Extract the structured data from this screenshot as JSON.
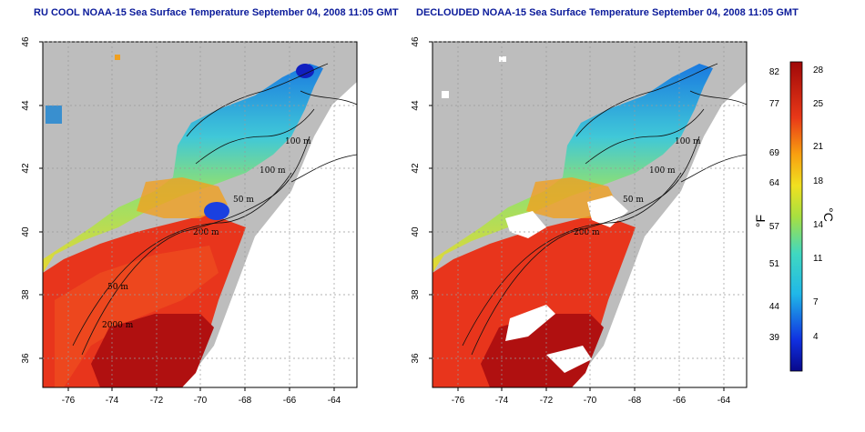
{
  "panels": [
    {
      "title": "RU COOL NOAA-15 Sea Surface Temperature September 04, 2008 11:05 GMT"
    },
    {
      "title": "DECLOUDED NOAA-15 Sea Surface Temperature September 04, 2008 11:05 GMT"
    }
  ],
  "axes": {
    "x_ticks": [
      "-76",
      "-74",
      "-72",
      "-70",
      "-68",
      "-66",
      "-64"
    ],
    "y_ticks": [
      "46",
      "44",
      "42",
      "40",
      "38",
      "36"
    ]
  },
  "contour_labels": [
    "100 m",
    "100 m",
    "50 m",
    "200 m",
    "50 m",
    "2000 m"
  ],
  "colorbar": {
    "f_label": "°F",
    "c_label": "°C",
    "f_ticks": [
      "82",
      "77",
      "69",
      "64",
      "57",
      "51",
      "44",
      "39"
    ],
    "c_ticks": [
      "28",
      "25",
      "21",
      "18",
      "14",
      "11",
      "7",
      "4"
    ]
  },
  "colors": {
    "land": "#bdbdbd",
    "ocean_warm": "#e8351c",
    "ocean_hot": "#b01010",
    "title": "#0a1a9a"
  }
}
